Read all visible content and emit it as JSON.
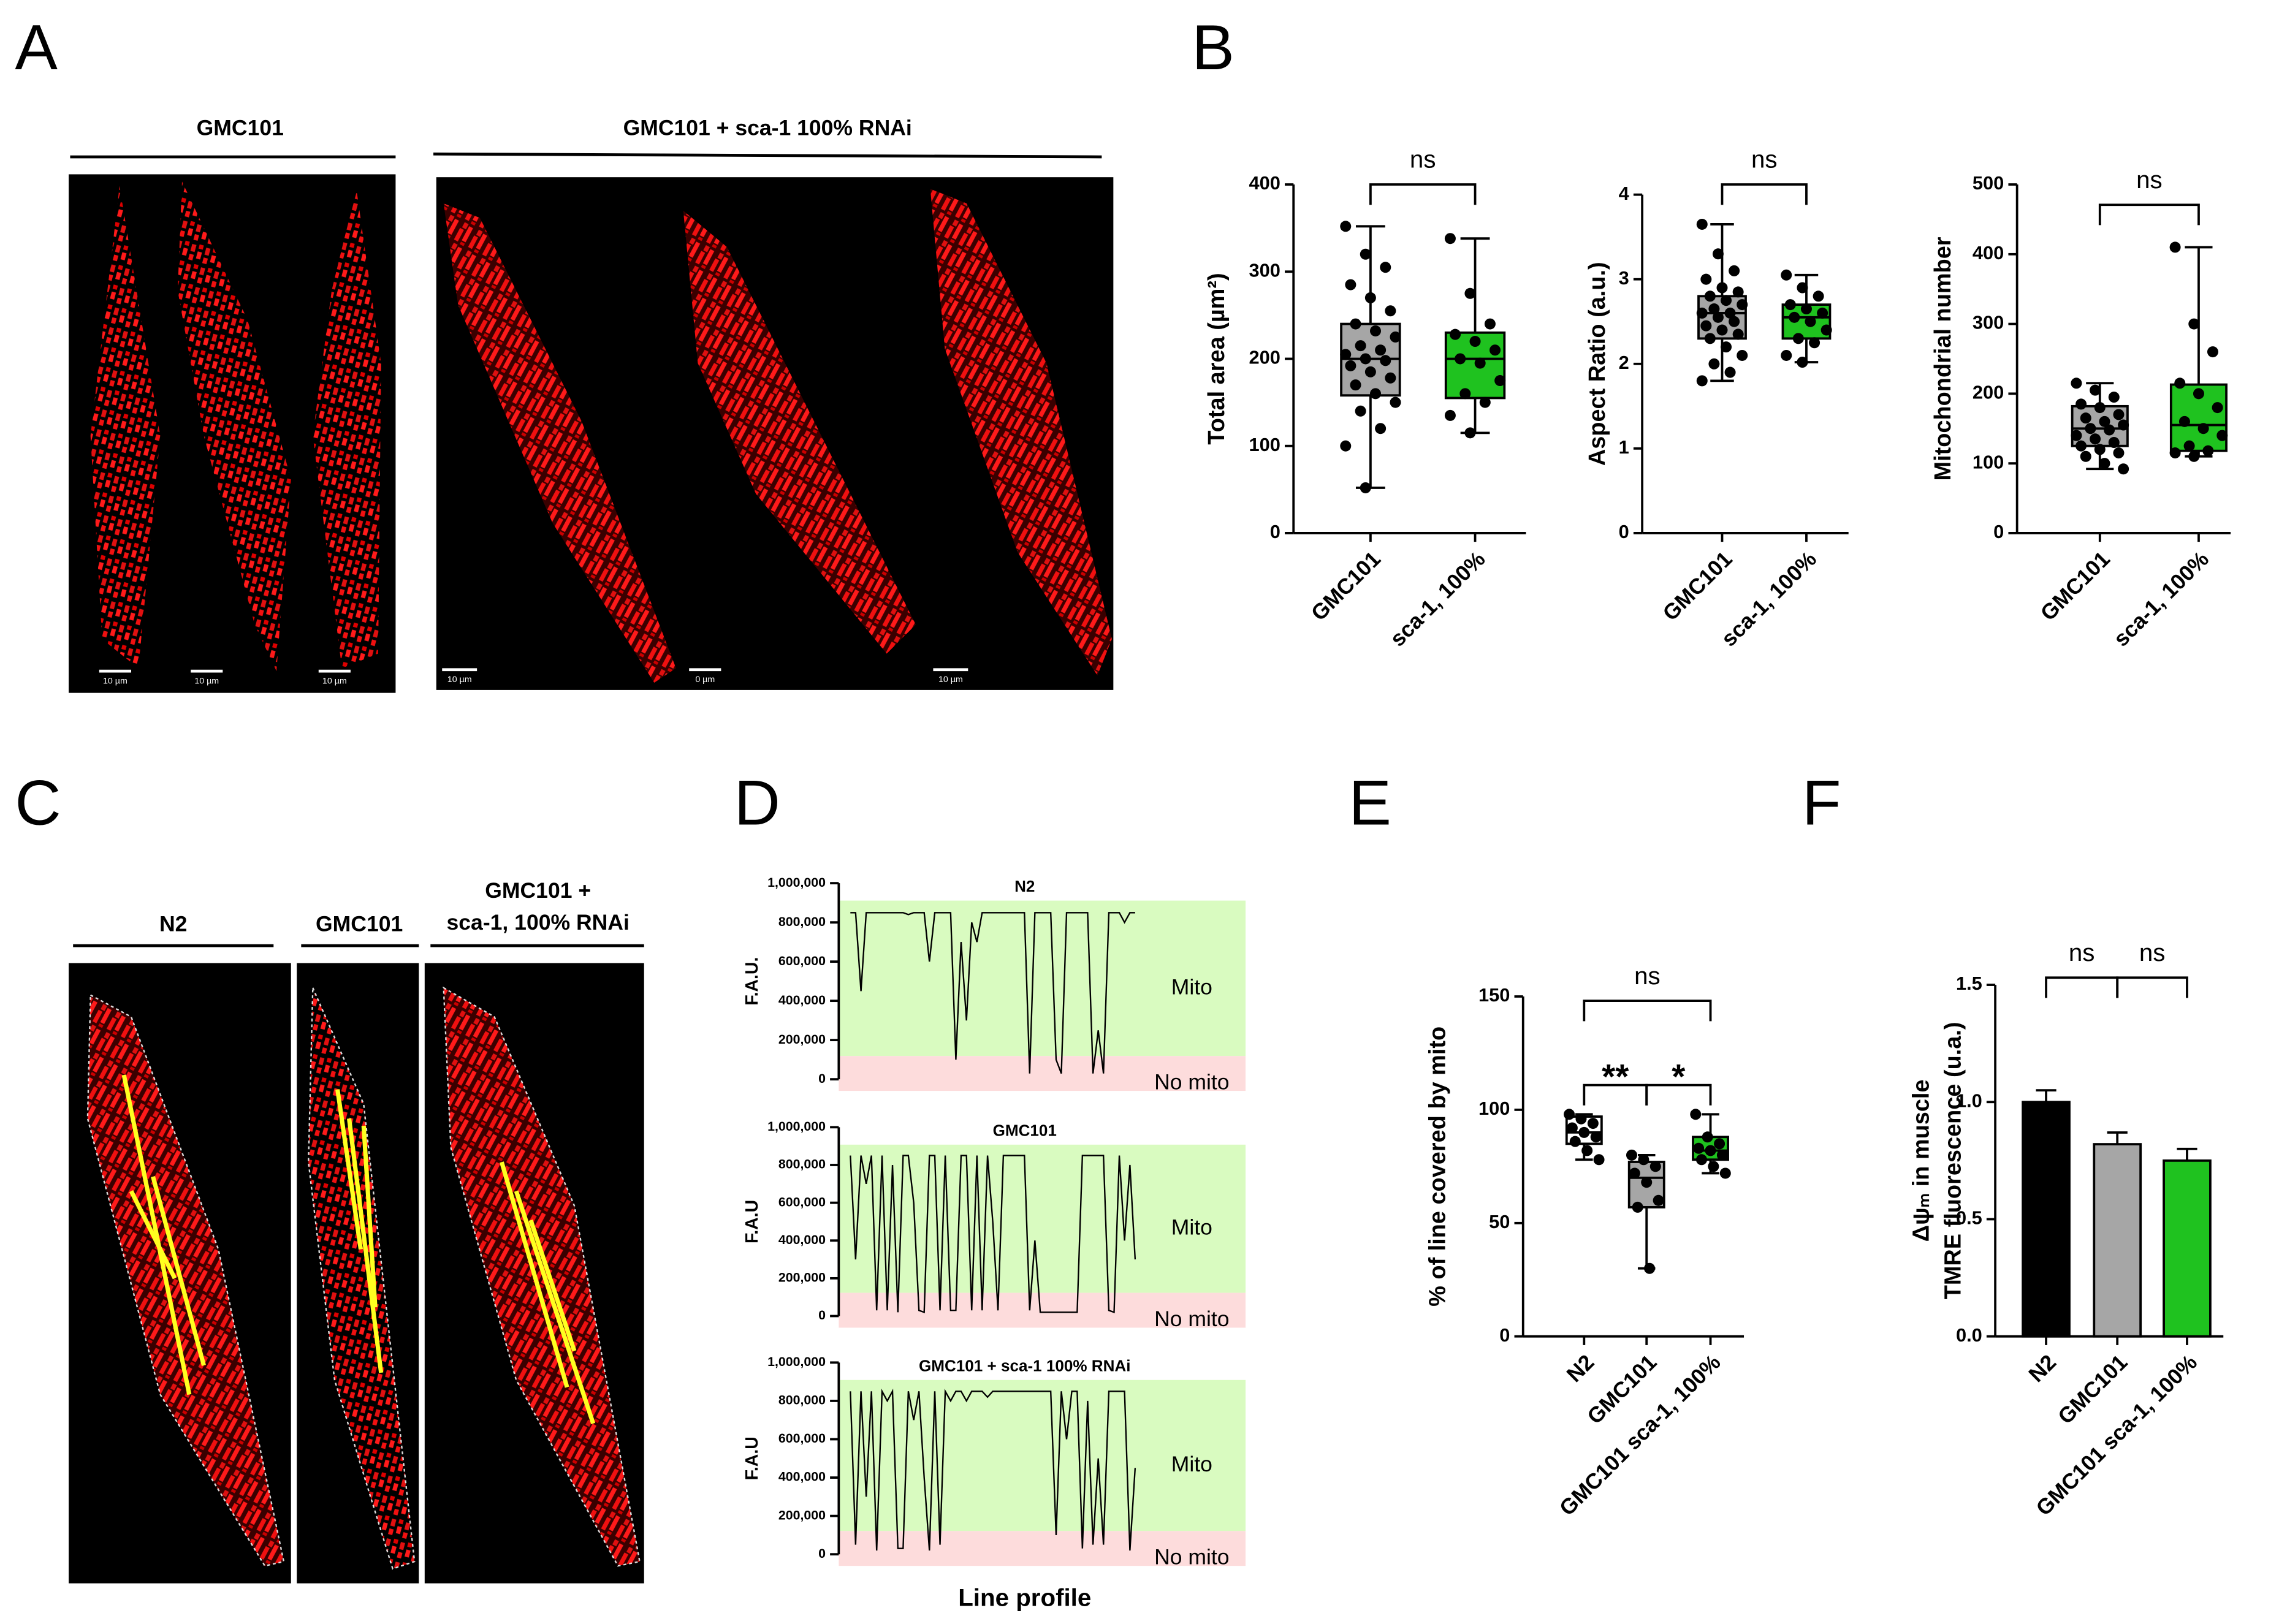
{
  "panel_labels": [
    "A",
    "B",
    "C",
    "D",
    "E",
    "F"
  ],
  "panel_a": {
    "headers": [
      "GMC101",
      "GMC101 + sca-1 100% RNAi"
    ],
    "scale_bars": [
      "10 µm",
      "10 µm",
      "10 µm",
      "10 µm",
      "0 µm",
      "10 µm"
    ]
  },
  "panel_c": {
    "headers": [
      "N2",
      "GMC101",
      "GMC101 +",
      "sca-1, 100% RNAi"
    ]
  },
  "chart_data": [
    {
      "type": "box",
      "ylabel": "Total area (µm²)",
      "categories": [
        "GMC101",
        "sca-1, 100%"
      ],
      "ylim": [
        0,
        400
      ],
      "yticks": [
        0,
        100,
        200,
        300,
        400
      ],
      "boxes": [
        {
          "color": "#a6a6a6",
          "min": 52,
          "q1": 158,
          "median": 200,
          "q3": 240,
          "max": 352,
          "points": [
            352,
            320,
            305,
            285,
            270,
            255,
            240,
            232,
            225,
            215,
            210,
            205,
            200,
            198,
            192,
            185,
            178,
            170,
            160,
            150,
            140,
            120,
            100,
            52
          ]
        },
        {
          "color": "#1fc21f",
          "min": 115,
          "q1": 155,
          "median": 200,
          "q3": 230,
          "max": 338,
          "points": [
            338,
            275,
            240,
            228,
            220,
            210,
            200,
            195,
            175,
            160,
            150,
            135,
            115
          ]
        }
      ],
      "annotations": [
        {
          "text": "ns",
          "between": [
            0,
            1
          ]
        }
      ]
    },
    {
      "type": "box",
      "ylabel": "Aspect Ratio (a.u.)",
      "categories": [
        "GMC101",
        "sca-1, 100%"
      ],
      "ylim": [
        0,
        4
      ],
      "yticks": [
        0,
        1,
        2,
        3,
        4
      ],
      "boxes": [
        {
          "color": "#a6a6a6",
          "min": 1.8,
          "q1": 2.3,
          "median": 2.6,
          "q3": 2.8,
          "max": 3.65,
          "points": [
            3.65,
            3.3,
            3.1,
            3.0,
            2.9,
            2.85,
            2.8,
            2.75,
            2.7,
            2.65,
            2.6,
            2.6,
            2.55,
            2.5,
            2.45,
            2.4,
            2.35,
            2.3,
            2.2,
            2.1,
            2.0,
            1.9,
            1.8
          ]
        },
        {
          "color": "#1fc21f",
          "min": 2.02,
          "q1": 2.3,
          "median": 2.55,
          "q3": 2.7,
          "max": 3.05,
          "points": [
            3.05,
            2.9,
            2.8,
            2.7,
            2.65,
            2.6,
            2.55,
            2.5,
            2.4,
            2.3,
            2.25,
            2.1,
            2.02
          ]
        }
      ],
      "annotations": [
        {
          "text": "ns",
          "between": [
            0,
            1
          ]
        }
      ]
    },
    {
      "type": "box",
      "ylabel": "Mitochondrial number",
      "categories": [
        "GMC101",
        "sca-1, 100%"
      ],
      "ylim": [
        0,
        500
      ],
      "yticks": [
        0,
        100,
        200,
        300,
        400,
        500
      ],
      "boxes": [
        {
          "color": "#a6a6a6",
          "min": 92,
          "q1": 125,
          "median": 150,
          "q3": 182,
          "max": 215,
          "points": [
            215,
            205,
            195,
            185,
            180,
            170,
            165,
            160,
            155,
            150,
            148,
            140,
            135,
            130,
            125,
            120,
            115,
            110,
            100,
            92
          ]
        },
        {
          "color": "#1fc21f",
          "min": 110,
          "q1": 118,
          "median": 155,
          "q3": 213,
          "max": 410,
          "points": [
            410,
            300,
            260,
            215,
            200,
            180,
            160,
            150,
            140,
            125,
            118,
            115,
            110
          ]
        }
      ],
      "annotations": [
        {
          "text": "ns",
          "between": [
            0,
            1
          ]
        }
      ]
    },
    {
      "type": "profile",
      "title": "N2",
      "ylabel": "F.A.U.",
      "regions": [
        "Mito",
        "No mito"
      ],
      "ylim": [
        0,
        1000000
      ],
      "yticks": [
        0,
        {
          "value": 200000,
          "label": "200,000"
        },
        {
          "value": 400000,
          "label": "400,000"
        },
        {
          "value": 600000,
          "label": "600,000"
        },
        {
          "value": 800000,
          "label": "800,000"
        },
        {
          "value": 1000000,
          "label": "1,000,000"
        }
      ],
      "values": [
        850000,
        850000,
        450000,
        850000,
        850000,
        850000,
        850000,
        850000,
        850000,
        850000,
        850000,
        840000,
        850000,
        850000,
        850000,
        600000,
        850000,
        850000,
        850000,
        850000,
        100000,
        700000,
        300000,
        800000,
        700000,
        850000,
        850000,
        850000,
        850000,
        850000,
        850000,
        850000,
        850000,
        850000,
        30000,
        850000,
        850000,
        850000,
        850000,
        100000,
        30000,
        850000,
        850000,
        850000,
        850000,
        850000,
        30000,
        250000,
        30000,
        850000,
        850000,
        850000,
        800000,
        850000,
        850000
      ]
    },
    {
      "type": "profile",
      "title": "GMC101",
      "ylabel": "F.A.U",
      "regions": [
        "Mito",
        "No mito"
      ],
      "ylim": [
        0,
        1000000
      ],
      "yticks": [
        0,
        {
          "value": 200000,
          "label": "200,000"
        },
        {
          "value": 400000,
          "label": "400,000"
        },
        {
          "value": 600000,
          "label": "600,000"
        },
        {
          "value": 800000,
          "label": "800,000"
        },
        {
          "value": 1000000,
          "label": "1,000,000"
        }
      ],
      "values": [
        850000,
        300000,
        850000,
        700000,
        850000,
        30000,
        850000,
        30000,
        800000,
        20000,
        850000,
        850000,
        600000,
        30000,
        20000,
        850000,
        850000,
        30000,
        850000,
        30000,
        30000,
        850000,
        850000,
        30000,
        850000,
        30000,
        850000,
        500000,
        30000,
        850000,
        850000,
        850000,
        850000,
        850000,
        30000,
        400000,
        20000,
        20000,
        20000,
        20000,
        20000,
        20000,
        20000,
        20000,
        850000,
        850000,
        850000,
        850000,
        850000,
        30000,
        20000,
        850000,
        400000,
        800000,
        300000
      ]
    },
    {
      "type": "profile",
      "title": "GMC101 + sca-1 100% RNAi",
      "ylabel": "F.A.U",
      "xlabel": "Line profile",
      "regions": [
        "Mito",
        "No mito"
      ],
      "ylim": [
        0,
        1000000
      ],
      "yticks": [
        0,
        {
          "value": 200000,
          "label": "200,000"
        },
        {
          "value": 400000,
          "label": "400,000"
        },
        {
          "value": 600000,
          "label": "600,000"
        },
        {
          "value": 800000,
          "label": "800,000"
        },
        {
          "value": 1000000,
          "label": "1,000,000"
        }
      ],
      "values": [
        850000,
        50000,
        850000,
        300000,
        850000,
        20000,
        850000,
        800000,
        850000,
        30000,
        30000,
        850000,
        700000,
        850000,
        400000,
        20000,
        850000,
        50000,
        850000,
        800000,
        850000,
        850000,
        800000,
        850000,
        850000,
        850000,
        820000,
        850000,
        850000,
        850000,
        850000,
        850000,
        850000,
        850000,
        850000,
        850000,
        850000,
        850000,
        850000,
        100000,
        850000,
        600000,
        850000,
        850000,
        30000,
        800000,
        50000,
        500000,
        50000,
        850000,
        850000,
        850000,
        850000,
        20000,
        450000
      ]
    },
    {
      "type": "box",
      "ylabel": "% of line covered by mito",
      "categories": [
        "N2",
        "GMC101",
        "GMC101 sca-1, 100%"
      ],
      "ylim": [
        0,
        150
      ],
      "yticks": [
        0,
        50,
        100,
        150
      ],
      "boxes": [
        {
          "color": "#ffffff",
          "min": 78,
          "q1": 85,
          "median": 90,
          "q3": 97,
          "max": 98,
          "points": [
            98,
            96,
            94,
            92,
            90,
            88,
            86,
            82,
            78
          ]
        },
        {
          "color": "#a6a6a6",
          "min": 30,
          "q1": 57,
          "median": 70,
          "q3": 77,
          "max": 80,
          "points": [
            80,
            78,
            75,
            72,
            68,
            60,
            57,
            30
          ]
        },
        {
          "color": "#1fc21f",
          "min": 72,
          "q1": 78,
          "median": 82,
          "q3": 88,
          "max": 98,
          "points": [
            98,
            88,
            85,
            83,
            82,
            80,
            78,
            75,
            72
          ]
        }
      ],
      "annotations": [
        {
          "text": "ns",
          "between": [
            0,
            2
          ]
        },
        {
          "text": "**",
          "between": [
            0,
            1
          ]
        },
        {
          "text": "*",
          "between": [
            1,
            2
          ]
        }
      ]
    },
    {
      "type": "bar",
      "ylabel": [
        "Δψₘ in muscle",
        "TMRE fluorescence (u.a.)"
      ],
      "categories": [
        "N2",
        "GMC101",
        "GMC101 sca-1, 100%"
      ],
      "ylim": [
        0,
        1.5
      ],
      "yticks": [
        {
          "value": 0,
          "label": "0.0"
        },
        {
          "value": 0.5,
          "label": "0.5"
        },
        {
          "value": 1,
          "label": "1.0"
        },
        {
          "value": 1.5,
          "label": "1.5"
        }
      ],
      "values": [
        1.0,
        0.82,
        0.75
      ],
      "errors": [
        0.05,
        0.05,
        0.05
      ],
      "colors": [
        "#000000",
        "#a6a6a6",
        "#1fc21f"
      ],
      "annotations": [
        {
          "text": "ns",
          "between": [
            0,
            1
          ]
        },
        {
          "text": "ns",
          "between": [
            1,
            2
          ]
        }
      ]
    }
  ]
}
